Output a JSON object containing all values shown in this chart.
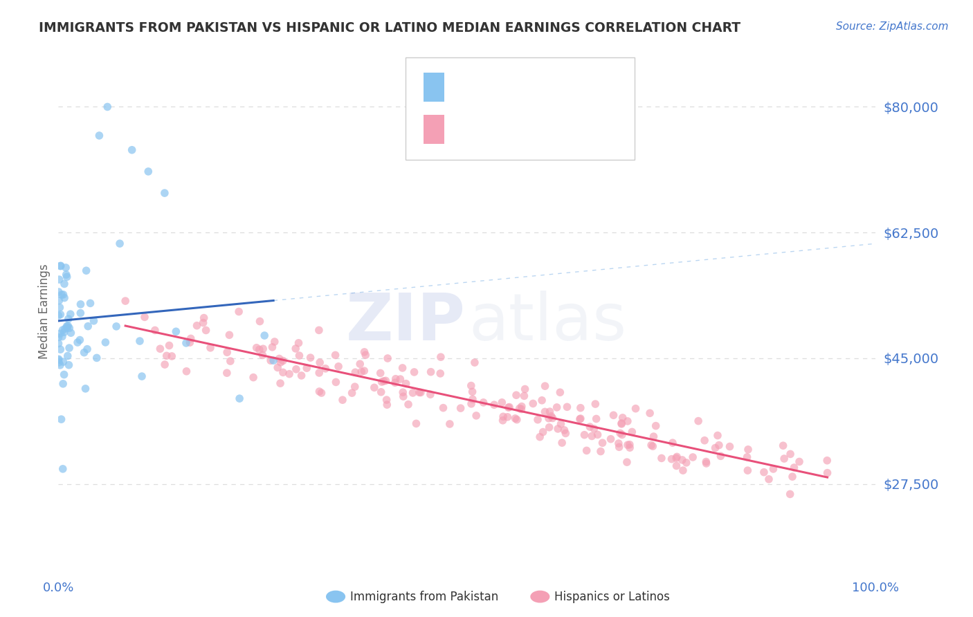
{
  "title": "IMMIGRANTS FROM PAKISTAN VS HISPANIC OR LATINO MEDIAN EARNINGS CORRELATION CHART",
  "source_text": "Source: ZipAtlas.com",
  "ylabel": "Median Earnings",
  "ytick_labels": [
    "$27,500",
    "$45,000",
    "$62,500",
    "$80,000"
  ],
  "ytick_values": [
    27500,
    45000,
    62500,
    80000
  ],
  "ylim": [
    15000,
    88000
  ],
  "xlim": [
    0.0,
    1.0
  ],
  "blue_color": "#89C4F0",
  "pink_color": "#F4A0B5",
  "trend_blue": "#3366BB",
  "trend_pink": "#E8507A",
  "dashed_color": "#AACCEE",
  "title_color": "#333333",
  "axis_label_color": "#4477CC",
  "background_color": "#FFFFFF",
  "grid_color": "#DDDDDD",
  "watermark_zip_color": "#3355BB",
  "watermark_atlas_color": "#99AACC"
}
